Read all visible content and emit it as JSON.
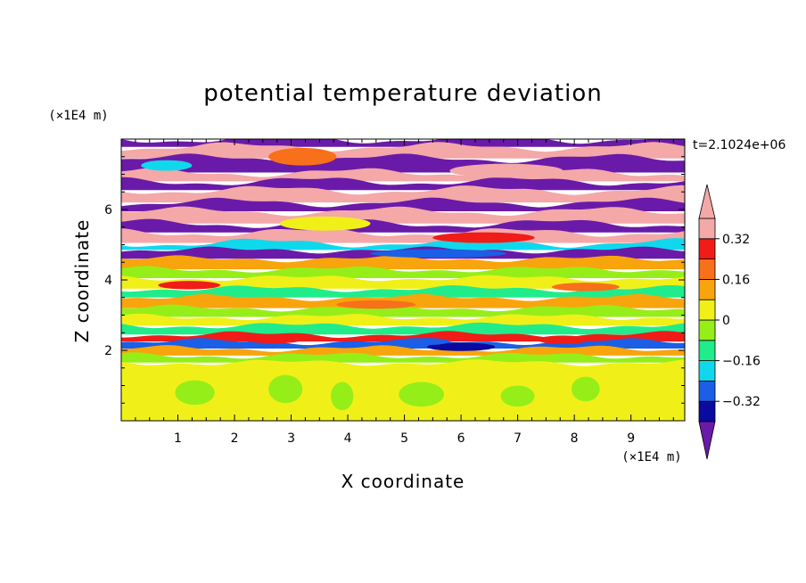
{
  "chart_data": {
    "type": "heatmap",
    "title": "potential temperature deviation",
    "xlabel": "X coordinate",
    "ylabel": "Z coordinate",
    "x_unit": "(×1E4 m)",
    "y_unit": "(×1E4 m)",
    "time_label": "t=2.1024e+06",
    "xlim": [
      0,
      9.95
    ],
    "ylim": [
      0,
      8
    ],
    "x_ticks": [
      1,
      2,
      3,
      4,
      5,
      6,
      7,
      8,
      9
    ],
    "y_ticks": [
      2,
      4,
      6
    ],
    "x_tick_labels": [
      "1",
      "2",
      "3",
      "4",
      "5",
      "6",
      "7",
      "8",
      "9"
    ],
    "y_tick_labels": [
      "2",
      "4",
      "6"
    ],
    "grid": false,
    "legend": "right",
    "colorbar": {
      "levels": [
        -0.4,
        -0.32,
        -0.24,
        -0.16,
        -0.08,
        0,
        0.08,
        0.16,
        0.24,
        0.32,
        0.4
      ],
      "tick_values": [
        0.32,
        0.16,
        0,
        -0.16,
        -0.32
      ],
      "tick_labels": [
        "0.32",
        "0.16",
        "0",
        "−0.16",
        "−0.32"
      ],
      "colors": [
        "#6a1aa8",
        "#0a0aa0",
        "#1a5fe6",
        "#10d8ec",
        "#20ec8c",
        "#96ee18",
        "#f0f018",
        "#f8a40c",
        "#f8701a",
        "#f01c18",
        "#f4a8a8"
      ],
      "extend": "both"
    },
    "bands": [
      {
        "zmin": 7.78,
        "zmax": 8.0,
        "value": -0.45
      },
      {
        "zmin": 7.45,
        "zmax": 7.78,
        "value": 0.45
      },
      {
        "zmin": 7.05,
        "zmax": 7.45,
        "value": -0.45
      },
      {
        "zmin": 6.8,
        "zmax": 7.05,
        "value": 0.45
      },
      {
        "zmin": 6.55,
        "zmax": 6.8,
        "value": -0.45
      },
      {
        "zmin": 6.2,
        "zmax": 6.55,
        "value": 0.45
      },
      {
        "zmin": 5.95,
        "zmax": 6.2,
        "value": -0.45
      },
      {
        "zmin": 5.6,
        "zmax": 5.95,
        "value": 0.45
      },
      {
        "zmin": 5.35,
        "zmax": 5.6,
        "value": -0.45
      },
      {
        "zmin": 5.05,
        "zmax": 5.35,
        "value": 0.45
      },
      {
        "zmin": 4.85,
        "zmax": 5.05,
        "value": -0.2
      },
      {
        "zmin": 4.6,
        "zmax": 4.85,
        "value": -0.45
      },
      {
        "zmin": 4.3,
        "zmax": 4.6,
        "value": 0.1
      },
      {
        "zmin": 4.05,
        "zmax": 4.3,
        "value": -0.05
      },
      {
        "zmin": 3.75,
        "zmax": 4.05,
        "value": 0.05
      },
      {
        "zmin": 3.5,
        "zmax": 3.75,
        "value": -0.1
      },
      {
        "zmin": 3.2,
        "zmax": 3.5,
        "value": 0.1
      },
      {
        "zmin": 2.95,
        "zmax": 3.2,
        "value": -0.05
      },
      {
        "zmin": 2.7,
        "zmax": 2.95,
        "value": 0.05
      },
      {
        "zmin": 2.45,
        "zmax": 2.7,
        "value": -0.1
      },
      {
        "zmin": 2.25,
        "zmax": 2.45,
        "value": 0.3
      },
      {
        "zmin": 2.05,
        "zmax": 2.25,
        "value": -0.3
      },
      {
        "zmin": 1.85,
        "zmax": 2.05,
        "value": 0.15
      },
      {
        "zmin": 1.65,
        "zmax": 1.85,
        "value": -0.05
      },
      {
        "zmin": 0.0,
        "zmax": 1.65,
        "value": 0.04
      }
    ],
    "features": [
      {
        "x": 3.2,
        "z": 7.5,
        "w": 1.2,
        "h": 0.25,
        "value": 0.2
      },
      {
        "x": 6.8,
        "z": 7.1,
        "w": 2.0,
        "h": 0.2,
        "value": 0.45
      },
      {
        "x": 0.8,
        "z": 7.25,
        "w": 0.9,
        "h": 0.15,
        "value": -0.2
      },
      {
        "x": 3.6,
        "z": 5.6,
        "w": 1.6,
        "h": 0.2,
        "value": 0.0
      },
      {
        "x": 6.4,
        "z": 5.2,
        "w": 1.8,
        "h": 0.15,
        "value": 0.3
      },
      {
        "x": 5.6,
        "z": 4.75,
        "w": 2.4,
        "h": 0.12,
        "value": -0.3
      },
      {
        "x": 1.2,
        "z": 3.85,
        "w": 1.1,
        "h": 0.12,
        "value": 0.3
      },
      {
        "x": 4.5,
        "z": 3.3,
        "w": 1.4,
        "h": 0.12,
        "value": 0.2
      },
      {
        "x": 8.2,
        "z": 3.8,
        "w": 1.2,
        "h": 0.12,
        "value": 0.2
      },
      {
        "x": 2.7,
        "z": 2.3,
        "w": 1.0,
        "h": 0.1,
        "value": 0.3
      },
      {
        "x": 6.0,
        "z": 2.1,
        "w": 1.2,
        "h": 0.12,
        "value": -0.35
      },
      {
        "x": 7.8,
        "z": 2.3,
        "w": 0.9,
        "h": 0.12,
        "value": 0.3
      },
      {
        "x": 5.4,
        "z": 2.25,
        "w": 0.8,
        "h": 0.1,
        "value": -0.25
      },
      {
        "x": 1.3,
        "z": 0.8,
        "w": 0.7,
        "h": 0.35,
        "value": -0.05
      },
      {
        "x": 2.9,
        "z": 0.9,
        "w": 0.6,
        "h": 0.4,
        "value": -0.05
      },
      {
        "x": 3.9,
        "z": 0.7,
        "w": 0.4,
        "h": 0.4,
        "value": -0.05
      },
      {
        "x": 5.3,
        "z": 0.75,
        "w": 0.8,
        "h": 0.35,
        "value": -0.05
      },
      {
        "x": 7.0,
        "z": 0.7,
        "w": 0.6,
        "h": 0.3,
        "value": -0.05
      },
      {
        "x": 8.2,
        "z": 0.9,
        "w": 0.5,
        "h": 0.35,
        "value": -0.05
      }
    ]
  }
}
